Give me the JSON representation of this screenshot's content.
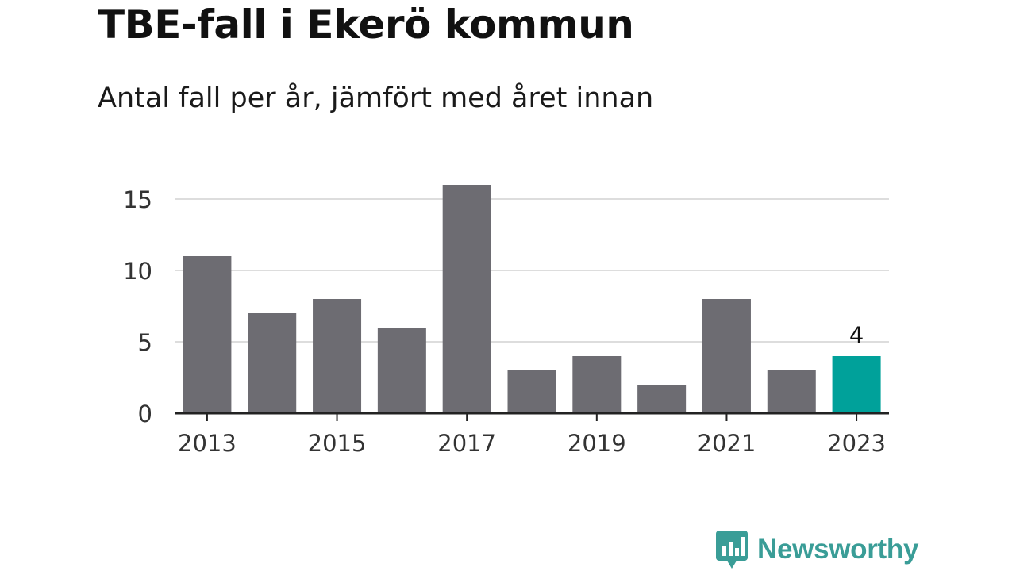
{
  "title": "TBE-fall i Ekerö kommun",
  "subtitle": "Antal fall per år, jämfört med året innan",
  "chart_data": {
    "type": "bar",
    "categories": [
      "2013",
      "2014",
      "2015",
      "2016",
      "2017",
      "2018",
      "2019",
      "2020",
      "2021",
      "2022",
      "2023"
    ],
    "values": [
      11,
      7,
      8,
      6,
      16,
      3,
      4,
      2,
      8,
      3,
      4
    ],
    "x_tick_labels": [
      "2013",
      "2015",
      "2017",
      "2019",
      "2021",
      "2023"
    ],
    "y_ticks": [
      0,
      5,
      10,
      15
    ],
    "ylim": [
      0,
      16
    ],
    "grid": true,
    "highlight": {
      "category": "2023",
      "label": "4"
    },
    "colors": {
      "bar": "#6d6c72",
      "highlight": "#00a19a",
      "grid": "#dddddd",
      "axis": "#222222"
    }
  },
  "logo": {
    "text": "Newsworthy",
    "icon": "newsworthy-logo-icon",
    "color": "#3a9d97"
  }
}
